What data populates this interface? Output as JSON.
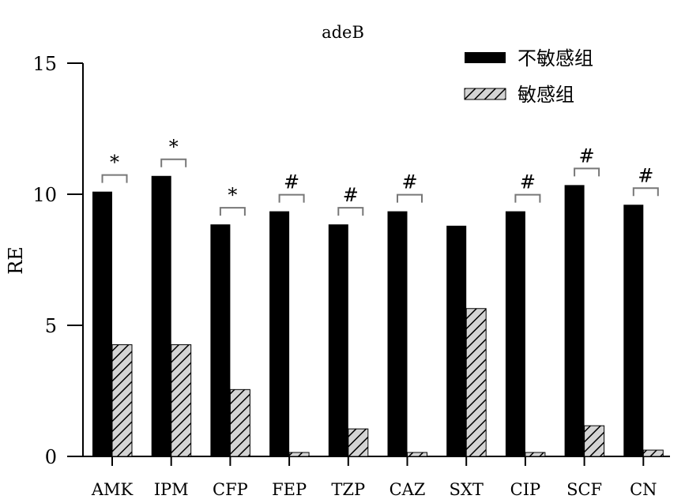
{
  "chart_data": {
    "type": "bar",
    "title": "adeB",
    "xlabel": "",
    "ylabel": "RE",
    "ylim": [
      0,
      15
    ],
    "yticks": [
      0,
      5,
      10,
      15
    ],
    "categories": [
      "AMK",
      "IPM",
      "CFP",
      "FEP",
      "TZP",
      "CAZ",
      "SXT",
      "CIP",
      "SCF",
      "CN"
    ],
    "series": [
      {
        "name": "不敏感组",
        "fill": "#000000",
        "pattern": "solid",
        "values": [
          10.1,
          10.7,
          8.85,
          9.35,
          8.85,
          9.35,
          8.8,
          9.35,
          10.35,
          9.6
        ]
      },
      {
        "name": "敏感组",
        "fill": "#d4d4d4",
        "pattern": "hatched",
        "values": [
          4.26,
          4.26,
          2.55,
          0.15,
          1.05,
          0.15,
          5.64,
          0.15,
          1.17,
          0.24
        ]
      }
    ],
    "significance": [
      "*",
      "*",
      "*",
      "#",
      "#",
      "#",
      "",
      "#",
      "#",
      "#"
    ],
    "legend": "top-right",
    "grid": false
  }
}
